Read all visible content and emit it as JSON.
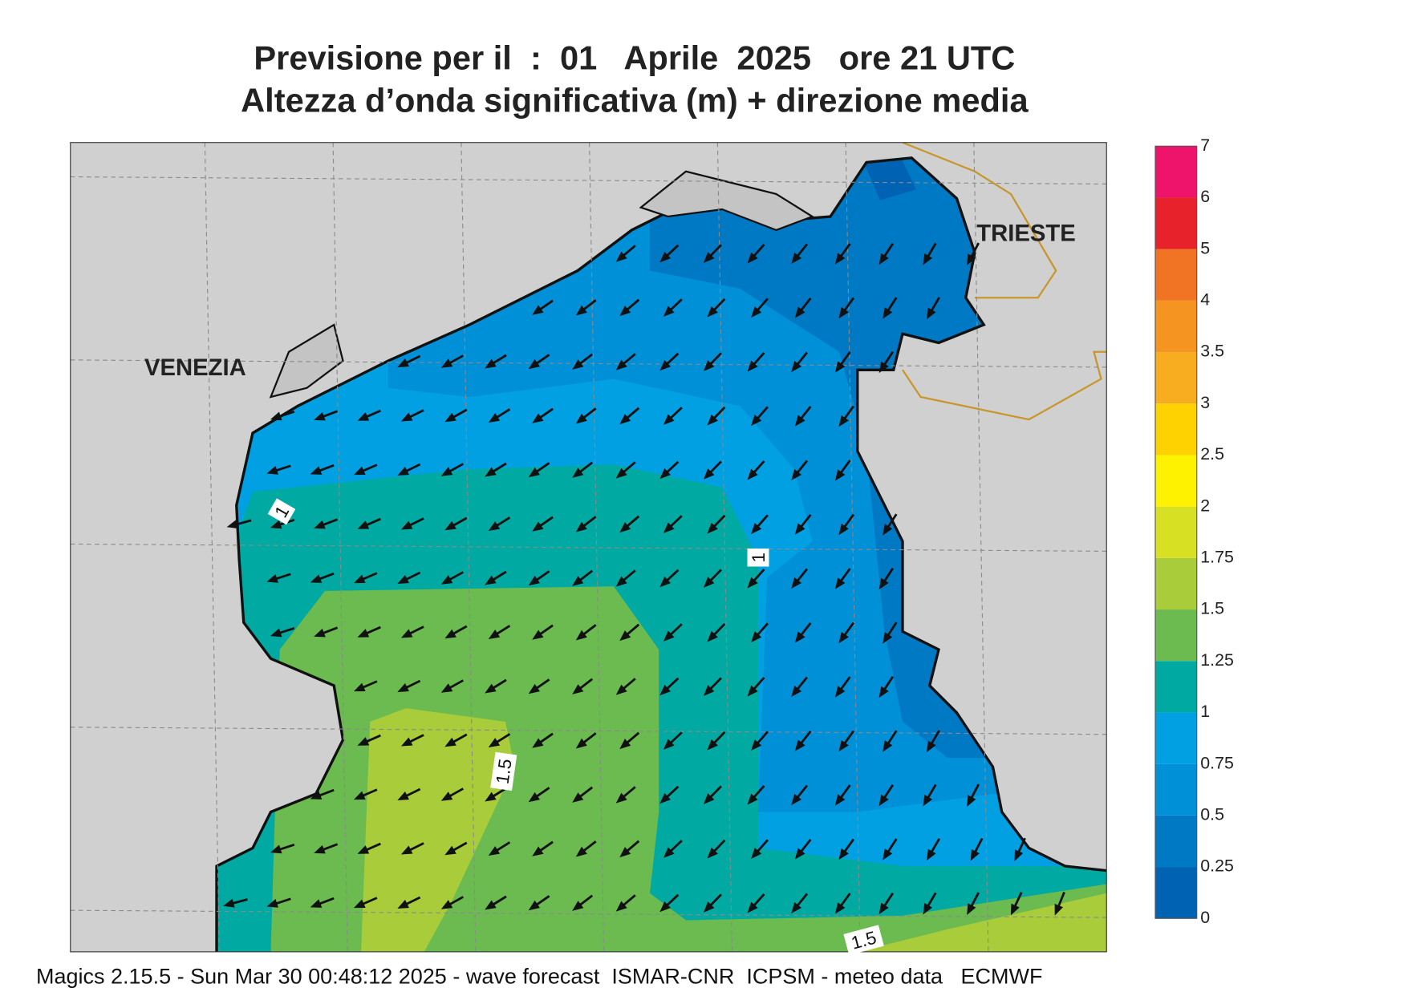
{
  "header": {
    "title_line1": "Previsione per il  :  01   Aprile  2025   ore 21 UTC",
    "title_line2": "Altezza d’onda significativa (m) + direzione media"
  },
  "map": {
    "cities": [
      "VENEZIA",
      "TRIESTE"
    ],
    "contour_labels": [
      1,
      1,
      1.5,
      1.5
    ]
  },
  "legend": {
    "levels": [
      0,
      0.25,
      0.5,
      0.75,
      1,
      1.25,
      1.5,
      1.75,
      2,
      2.5,
      3,
      3.5,
      4,
      5,
      6,
      7
    ],
    "colors": [
      "#0062b2",
      "#0079c4",
      "#0090d8",
      "#00a0e2",
      "#00aaa2",
      "#6cbb50",
      "#a8cc3a",
      "#d8e024",
      "#fff200",
      "#fdd200",
      "#f8ac20",
      "#f59420",
      "#f07424",
      "#e8222a",
      "#ee146c"
    ]
  },
  "footer": "Magics 2.15.5 - Sun Mar 30 00:48:12 2025 - wave forecast  ISMAR-CNR  ICPSM - meteo data   ECMWF"
}
